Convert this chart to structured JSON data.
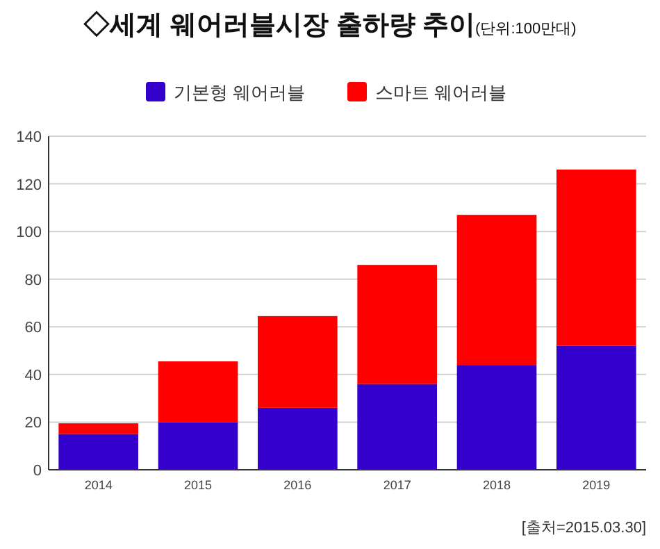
{
  "chart_data": {
    "type": "bar",
    "title": "◇세계 웨어러블시장 출하량 추이",
    "subtitle": "(단위:100만대)",
    "categories": [
      "2014",
      "2015",
      "2016",
      "2017",
      "2018",
      "2019"
    ],
    "stacked": true,
    "series": [
      {
        "name": "기본형 웨어러블",
        "color": "#3300cc",
        "values": [
          15,
          20,
          26,
          36,
          44,
          52
        ]
      },
      {
        "name": "스마트 웨어러블",
        "color": "#ff0000",
        "values": [
          4.5,
          25.5,
          38.5,
          50,
          63,
          74
        ]
      }
    ],
    "ylim": [
      0,
      140
    ],
    "yticks": [
      0,
      20,
      40,
      60,
      80,
      100,
      120,
      140
    ],
    "grid": "y",
    "legend": "top",
    "annotations": [
      "[출처=2015.03.30]"
    ]
  }
}
